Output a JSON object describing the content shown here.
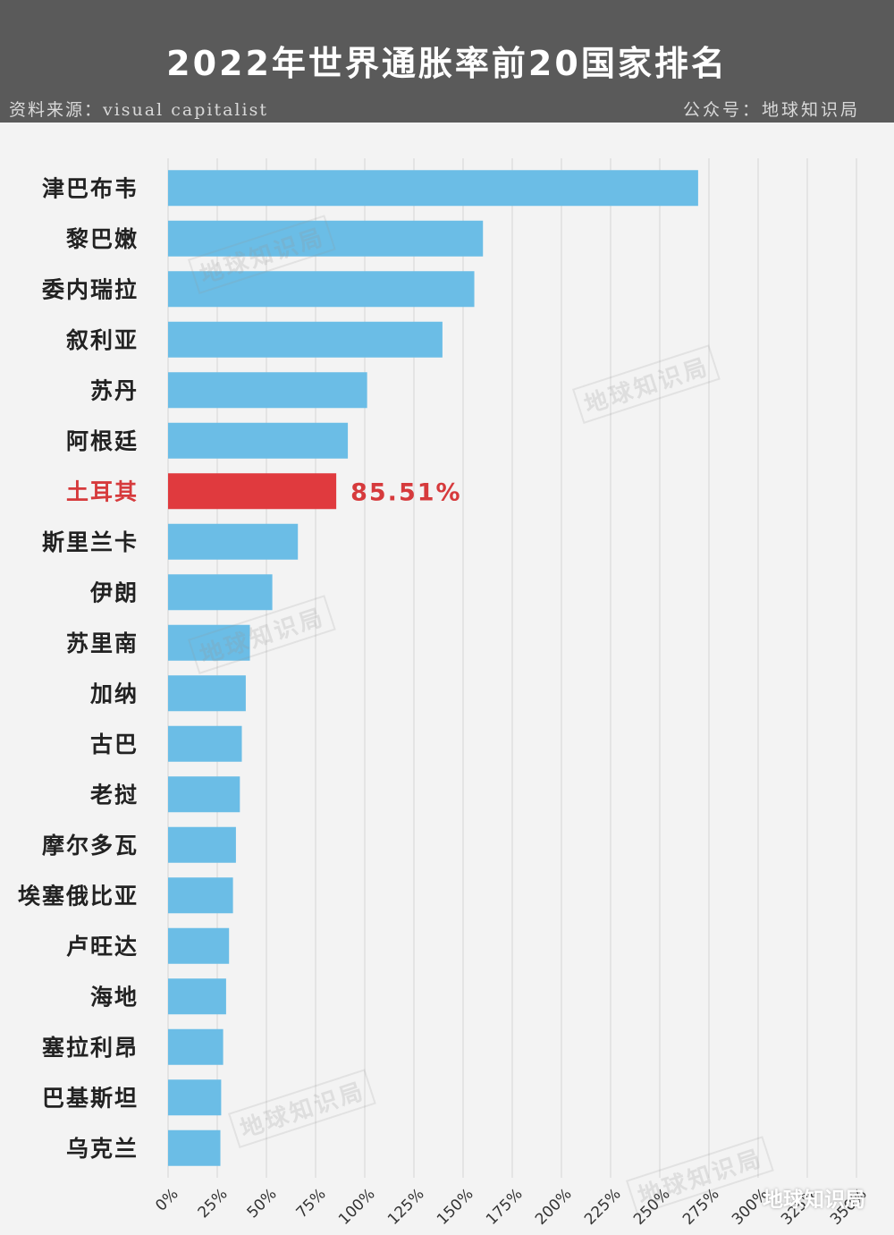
{
  "header": {
    "title": "2022年世界通胀率前20国家排名",
    "source": "资料来源：visual capitalist",
    "account": "公众号：地球知识局"
  },
  "watermark": {
    "text": "地球知识局",
    "corner_text": "地球知识局"
  },
  "colors": {
    "header_bg": "#5a5a5a",
    "background": "#f3f3f3",
    "bar": "#6bbde6",
    "highlight_bar": "#e03a3e",
    "highlight_text": "#d63a3c",
    "grid": "#d4d4d4"
  },
  "chart_data": {
    "type": "bar",
    "orientation": "horizontal",
    "title": "2022年世界通胀率前20国家排名",
    "xlim": [
      0,
      350
    ],
    "ticks": [
      0,
      25,
      50,
      75,
      100,
      125,
      150,
      175,
      200,
      225,
      250,
      275,
      300,
      325,
      350
    ],
    "tick_labels": [
      "0%",
      "25%",
      "50%",
      "75%",
      "100%",
      "125%",
      "150%",
      "175%",
      "200%",
      "225%",
      "250%",
      "275%",
      "300%",
      "325%",
      "350%"
    ],
    "grid": true,
    "highlight_index": 6,
    "data_labels": [
      {
        "index": 6,
        "text": "85.51%"
      }
    ],
    "categories": [
      "津巴布韦",
      "黎巴嫩",
      "委内瑞拉",
      "叙利亚",
      "苏丹",
      "阿根廷",
      "土耳其",
      "斯里兰卡",
      "伊朗",
      "苏里南",
      "加纳",
      "古巴",
      "老挝",
      "摩尔多瓦",
      "埃塞俄比亚",
      "卢旺达",
      "海地",
      "塞拉利昂",
      "巴基斯坦",
      "乌克兰"
    ],
    "values": [
      269.5,
      160.1,
      155.7,
      139.5,
      101.2,
      91.4,
      85.51,
      66.0,
      53.0,
      41.6,
      39.5,
      37.5,
      36.5,
      34.5,
      33.0,
      31.0,
      29.5,
      28.0,
      27.0,
      26.6
    ]
  }
}
